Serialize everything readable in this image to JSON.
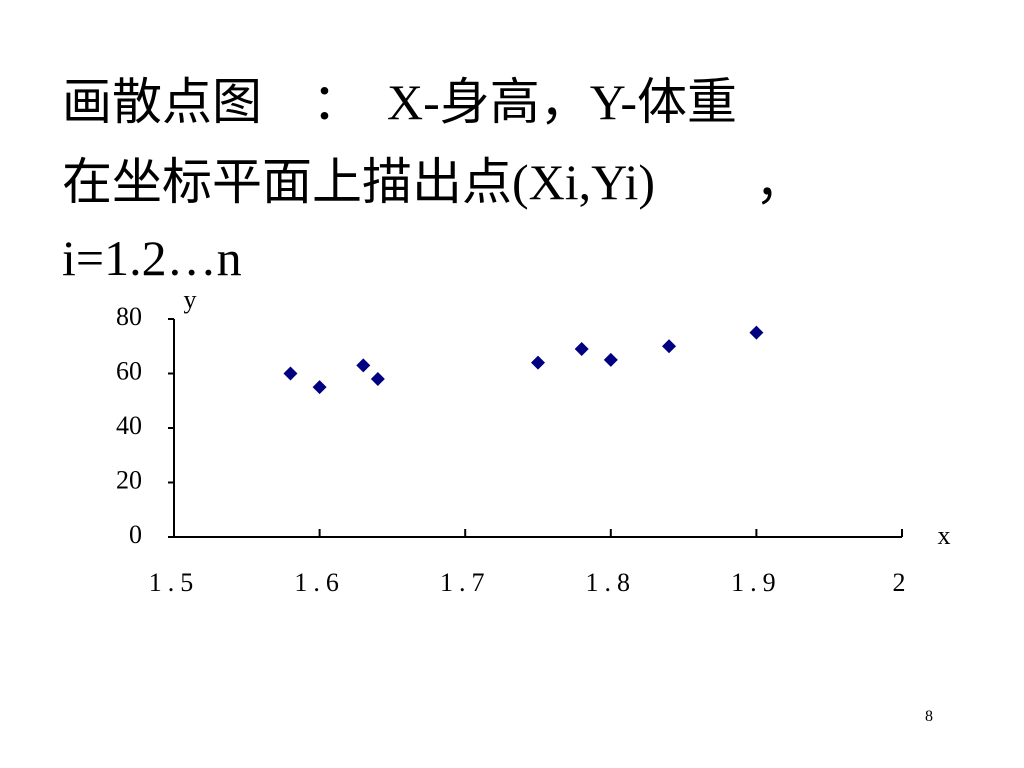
{
  "title_lines": [
    "画散点图　：　X-身高，Y-体重",
    "在坐标平面上描出点(Xi,Yi)　　，",
    "i=1.2…n"
  ],
  "page_number": "8",
  "chart_data": {
    "type": "scatter",
    "x_label": "x",
    "y_label": "y",
    "x": [
      1.58,
      1.6,
      1.63,
      1.64,
      1.75,
      1.78,
      1.8,
      1.84,
      1.9
    ],
    "values": [
      60,
      55,
      63,
      58,
      64,
      69,
      65,
      70,
      75
    ],
    "color": "#000080",
    "xlim": [
      1.5,
      2
    ],
    "xticks": [
      1.5,
      1.6,
      1.7,
      1.8,
      1.9,
      2
    ],
    "ylim": [
      0,
      80
    ],
    "yticks": [
      0,
      20,
      40,
      60,
      80
    ],
    "grid": false
  }
}
